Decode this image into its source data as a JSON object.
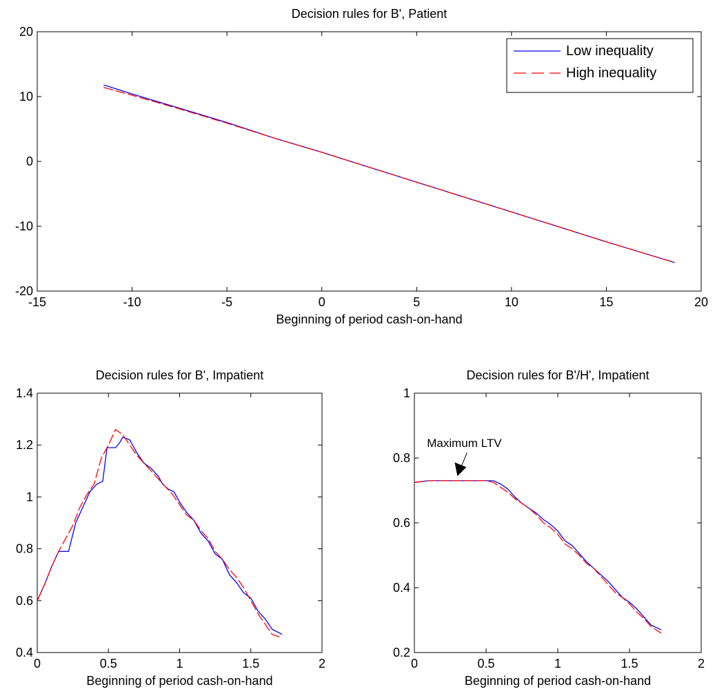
{
  "chart_data": [
    {
      "type": "line",
      "title": "Decision rules for B', Patient",
      "xlabel": "Beginning of period cash-on-hand",
      "ylabel": "",
      "xlim": [
        -15,
        20
      ],
      "ylim": [
        -20,
        20
      ],
      "xticks": [
        -15,
        -10,
        -5,
        0,
        5,
        10,
        15,
        20
      ],
      "yticks": [
        -20,
        -10,
        0,
        10,
        20
      ],
      "grid": false,
      "legend": "top-right",
      "series": [
        {
          "name": "Low inequality",
          "color": "#0000ff",
          "dash": "solid",
          "x": [
            -11.5,
            -10,
            -7.5,
            -5,
            -2.5,
            0,
            2.5,
            5,
            7.5,
            10,
            12.5,
            15,
            18.6
          ],
          "y": [
            11.8,
            10.4,
            8.2,
            6.0,
            3.6,
            1.4,
            -0.9,
            -3.2,
            -5.5,
            -7.8,
            -10.1,
            -12.4,
            -15.6
          ]
        },
        {
          "name": "High inequality",
          "color": "#ff0000",
          "dash": "dashed",
          "x": [
            -11.5,
            -10,
            -7.5,
            -5,
            -2.5,
            0,
            2.5,
            5,
            7.5,
            10,
            12.5,
            15,
            18.6
          ],
          "y": [
            11.4,
            10.2,
            8.1,
            5.9,
            3.6,
            1.4,
            -0.9,
            -3.2,
            -5.5,
            -7.8,
            -10.1,
            -12.4,
            -15.6
          ]
        }
      ]
    },
    {
      "type": "line",
      "title": "Decision rules for B', Impatient",
      "xlabel": "Beginning of period cash-on-hand",
      "ylabel": "",
      "xlim": [
        0,
        2
      ],
      "ylim": [
        0.4,
        1.4
      ],
      "xticks": [
        0,
        0.5,
        1,
        1.5,
        2
      ],
      "yticks": [
        0.4,
        0.6,
        0.8,
        1,
        1.2,
        1.4
      ],
      "grid": false,
      "series": [
        {
          "name": "Low inequality",
          "color": "#0000ff",
          "dash": "solid",
          "x": [
            0,
            0.05,
            0.1,
            0.15,
            0.22,
            0.27,
            0.32,
            0.37,
            0.42,
            0.46,
            0.49,
            0.55,
            0.58,
            0.6,
            0.65,
            0.7,
            0.75,
            0.8,
            0.85,
            0.88,
            0.92,
            0.96,
            1.0,
            1.05,
            1.1,
            1.15,
            1.2,
            1.25,
            1.3,
            1.35,
            1.4,
            1.45,
            1.5,
            1.55,
            1.6,
            1.65,
            1.72
          ],
          "y": [
            0.6,
            0.66,
            0.73,
            0.79,
            0.79,
            0.9,
            0.96,
            1.02,
            1.05,
            1.06,
            1.19,
            1.19,
            1.21,
            1.23,
            1.22,
            1.17,
            1.13,
            1.11,
            1.08,
            1.05,
            1.03,
            1.02,
            0.98,
            0.94,
            0.91,
            0.86,
            0.83,
            0.78,
            0.76,
            0.7,
            0.67,
            0.63,
            0.61,
            0.56,
            0.53,
            0.49,
            0.47
          ]
        },
        {
          "name": "High inequality",
          "color": "#ff0000",
          "dash": "dashed",
          "x": [
            0,
            0.05,
            0.1,
            0.15,
            0.2,
            0.25,
            0.3,
            0.35,
            0.4,
            0.45,
            0.5,
            0.55,
            0.6,
            0.65,
            0.7,
            0.75,
            0.8,
            0.85,
            0.9,
            0.95,
            1.0,
            1.05,
            1.1,
            1.15,
            1.2,
            1.25,
            1.3,
            1.35,
            1.4,
            1.45,
            1.5,
            1.55,
            1.6,
            1.65,
            1.7
          ],
          "y": [
            0.6,
            0.66,
            0.73,
            0.79,
            0.84,
            0.89,
            0.96,
            1.01,
            1.05,
            1.15,
            1.2,
            1.26,
            1.24,
            1.2,
            1.16,
            1.13,
            1.1,
            1.07,
            1.04,
            1.01,
            0.97,
            0.93,
            0.91,
            0.87,
            0.84,
            0.79,
            0.76,
            0.72,
            0.69,
            0.65,
            0.6,
            0.55,
            0.51,
            0.47,
            0.46
          ]
        }
      ]
    },
    {
      "type": "line",
      "title": "Decision rules for B'/H', Impatient",
      "xlabel": "Beginning of period cash-on-hand",
      "ylabel": "",
      "xlim": [
        0,
        2
      ],
      "ylim": [
        0.2,
        1
      ],
      "xticks": [
        0,
        0.5,
        1,
        1.5,
        2
      ],
      "yticks": [
        0.2,
        0.4,
        0.6,
        0.8,
        1
      ],
      "grid": false,
      "annotations": [
        {
          "text": "Maximum LTV",
          "x": 0.3,
          "y": 0.74
        }
      ],
      "series": [
        {
          "name": "Low inequality",
          "color": "#0000ff",
          "dash": "solid",
          "x": [
            0,
            0.1,
            0.2,
            0.3,
            0.4,
            0.5,
            0.55,
            0.6,
            0.65,
            0.7,
            0.75,
            0.8,
            0.85,
            0.9,
            0.95,
            1.0,
            1.05,
            1.1,
            1.15,
            1.2,
            1.25,
            1.3,
            1.35,
            1.4,
            1.45,
            1.5,
            1.55,
            1.6,
            1.65,
            1.72
          ],
          "y": [
            0.725,
            0.73,
            0.73,
            0.73,
            0.73,
            0.73,
            0.73,
            0.72,
            0.705,
            0.68,
            0.66,
            0.645,
            0.63,
            0.61,
            0.595,
            0.575,
            0.545,
            0.53,
            0.505,
            0.48,
            0.46,
            0.44,
            0.42,
            0.395,
            0.37,
            0.355,
            0.335,
            0.31,
            0.285,
            0.27
          ]
        },
        {
          "name": "High inequality",
          "color": "#ff0000",
          "dash": "dashed",
          "x": [
            0,
            0.1,
            0.2,
            0.3,
            0.4,
            0.5,
            0.55,
            0.6,
            0.65,
            0.7,
            0.75,
            0.8,
            0.85,
            0.9,
            0.95,
            1.0,
            1.05,
            1.1,
            1.15,
            1.2,
            1.25,
            1.3,
            1.35,
            1.4,
            1.45,
            1.5,
            1.55,
            1.6,
            1.65,
            1.72
          ],
          "y": [
            0.725,
            0.73,
            0.73,
            0.73,
            0.73,
            0.73,
            0.725,
            0.71,
            0.695,
            0.675,
            0.66,
            0.645,
            0.625,
            0.6,
            0.585,
            0.565,
            0.535,
            0.52,
            0.5,
            0.475,
            0.46,
            0.435,
            0.41,
            0.385,
            0.37,
            0.35,
            0.325,
            0.305,
            0.28,
            0.26
          ]
        }
      ]
    }
  ]
}
